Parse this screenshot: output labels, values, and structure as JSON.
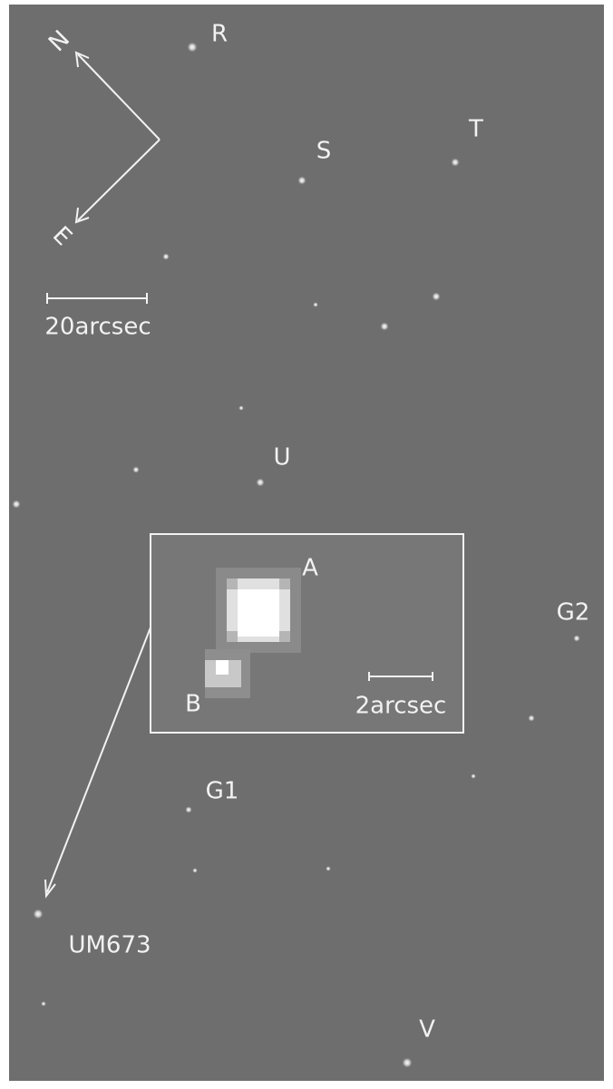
{
  "compass": {
    "north": "N",
    "east": "E"
  },
  "scale_bar": "20arcsec",
  "objects": [
    "R",
    "S",
    "T",
    "U",
    "G2",
    "G1",
    "UM673",
    "V"
  ],
  "inset": {
    "components": [
      "A",
      "B"
    ],
    "scale_bar": "2arcsec"
  }
}
